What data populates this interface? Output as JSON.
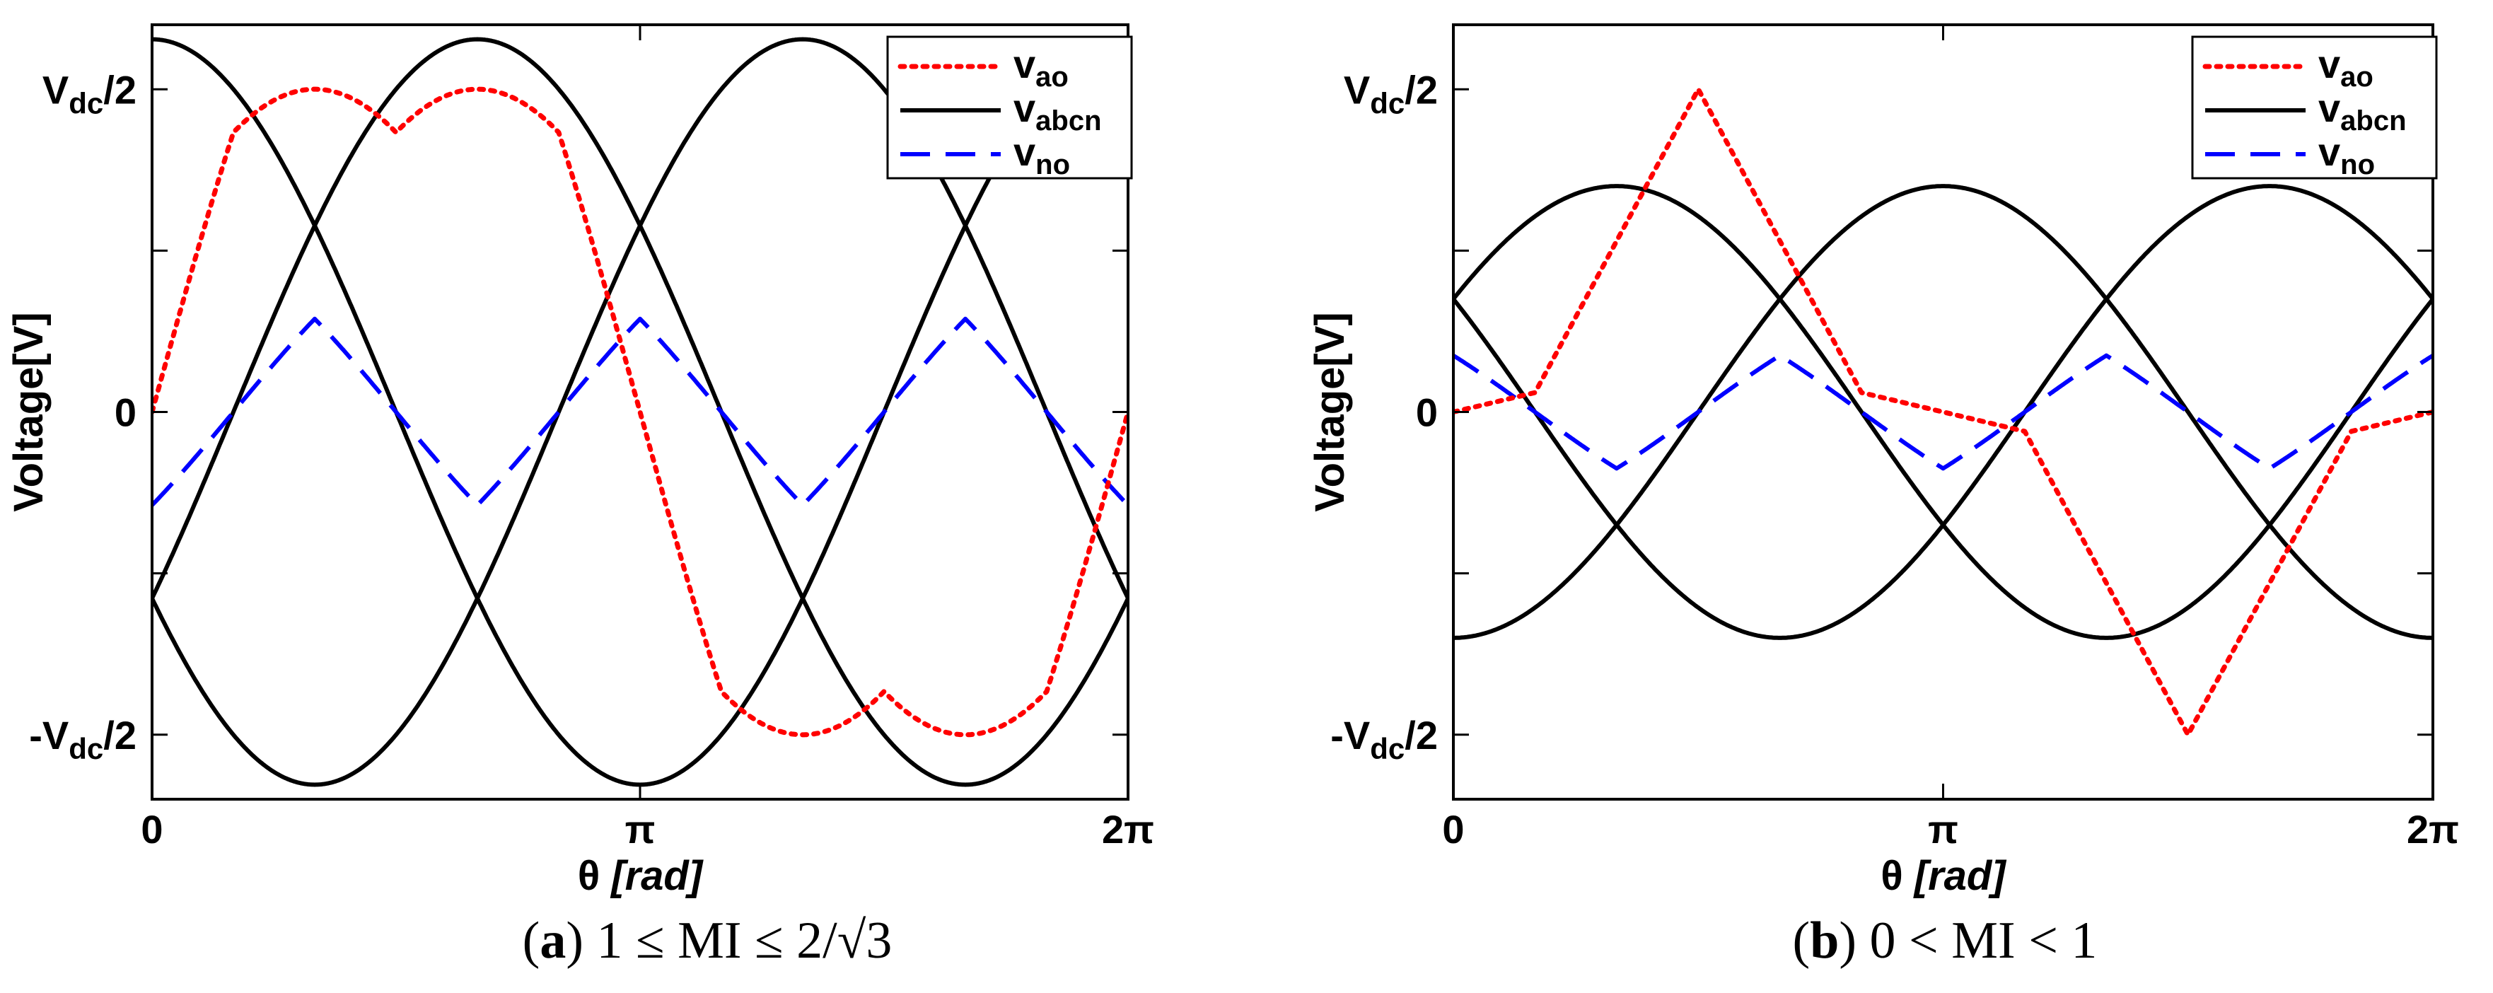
{
  "chart_data": [
    {
      "type": "line",
      "panel_letter": "a",
      "caption_condition": "1 ≤ MI ≤ 2/√3",
      "xlabel_symbol": "θ",
      "xlabel_unit": "[rad]",
      "ylabel": "Voltage[V]",
      "xlim": [
        0,
        6.2832
      ],
      "ylim": [
        -1.2,
        1.2
      ],
      "xticks": [
        {
          "value": 0,
          "label": "0"
        },
        {
          "value": 3.1416,
          "label": "π"
        },
        {
          "value": 6.2832,
          "label": "2π"
        }
      ],
      "yticks": [
        {
          "value": 1,
          "label": "V",
          "sub": "dc",
          "suffix": "/2"
        },
        {
          "value": 0,
          "label": "0",
          "sub": "",
          "suffix": ""
        },
        {
          "value": -1,
          "label": "-V",
          "sub": "dc",
          "suffix": "/2"
        }
      ],
      "yticks_minor": [
        -1,
        -0.5,
        0,
        0.5,
        1
      ],
      "legend": [
        {
          "name": "v",
          "sub": "ao",
          "color": "#ff0000",
          "style": "dotted"
        },
        {
          "name": "v",
          "sub": "abcn",
          "color": "#000000",
          "style": "solid"
        },
        {
          "name": "v",
          "sub": "no",
          "color": "#0000ff",
          "style": "dashed"
        }
      ],
      "series": [
        {
          "name": "v_abcn phase a",
          "color": "#000000",
          "style": "solid",
          "amplitude": 1.155,
          "phase_deg": 0
        },
        {
          "name": "v_abcn phase b",
          "color": "#000000",
          "style": "solid",
          "amplitude": 1.155,
          "phase_deg": -120
        },
        {
          "name": "v_abcn phase c",
          "color": "#000000",
          "style": "solid",
          "amplitude": 1.155,
          "phase_deg": 120
        },
        {
          "name": "v_no",
          "color": "#0000ff",
          "style": "dashed",
          "amplitude": 1.155,
          "kind": "minmax_offset"
        },
        {
          "name": "v_ao",
          "color": "#ff0000",
          "style": "dotted",
          "amplitude": 1.155,
          "kind": "phase_plus_offset"
        }
      ]
    },
    {
      "type": "line",
      "panel_letter": "b",
      "caption_condition": "0 < MI < 1",
      "xlabel_symbol": "θ",
      "xlabel_unit": "[rad]",
      "ylabel": "Voltage[V]",
      "xlim": [
        0,
        6.2832
      ],
      "ylim": [
        -1.2,
        1.2
      ],
      "xticks": [
        {
          "value": 0,
          "label": "0"
        },
        {
          "value": 3.1416,
          "label": "π"
        },
        {
          "value": 6.2832,
          "label": "2π"
        }
      ],
      "yticks": [
        {
          "value": 1,
          "label": "V",
          "sub": "dc",
          "suffix": "/2"
        },
        {
          "value": 0,
          "label": "0",
          "sub": "",
          "suffix": ""
        },
        {
          "value": -1,
          "label": "-V",
          "sub": "dc",
          "suffix": "/2"
        }
      ],
      "yticks_minor": [
        -1,
        -0.5,
        0,
        0.5,
        1
      ],
      "legend": [
        {
          "name": "v",
          "sub": "ao",
          "color": "#ff0000",
          "style": "dotted"
        },
        {
          "name": "v",
          "sub": "abcn",
          "color": "#000000",
          "style": "solid"
        },
        {
          "name": "v",
          "sub": "no",
          "color": "#0000ff",
          "style": "dashed"
        }
      ],
      "series": [
        {
          "name": "v_abcn phase a",
          "color": "#000000",
          "style": "solid",
          "amplitude": 0.7,
          "phase_deg": 60
        },
        {
          "name": "v_abcn phase b",
          "color": "#000000",
          "style": "solid",
          "amplitude": 0.7,
          "phase_deg": -60
        },
        {
          "name": "v_abcn phase c",
          "color": "#000000",
          "style": "solid",
          "amplitude": 0.7,
          "phase_deg": 180
        },
        {
          "name": "v_no",
          "color": "#0000ff",
          "style": "dashed",
          "amplitude": 0.7,
          "kind": "minmax_offset"
        },
        {
          "name": "v_ao",
          "color": "#ff0000",
          "style": "dotted",
          "amplitude": 0.7,
          "kind": "triangular_peak",
          "peaks": [
            [
              0,
              0
            ],
            [
              0.524,
              0.06
            ],
            [
              1.571,
              1.0
            ],
            [
              2.618,
              0.06
            ],
            [
              3.1416,
              0.0
            ],
            [
              3.665,
              -0.06
            ],
            [
              4.712,
              -1.0
            ],
            [
              5.76,
              -0.06
            ],
            [
              6.2832,
              0.0
            ]
          ]
        }
      ]
    }
  ]
}
